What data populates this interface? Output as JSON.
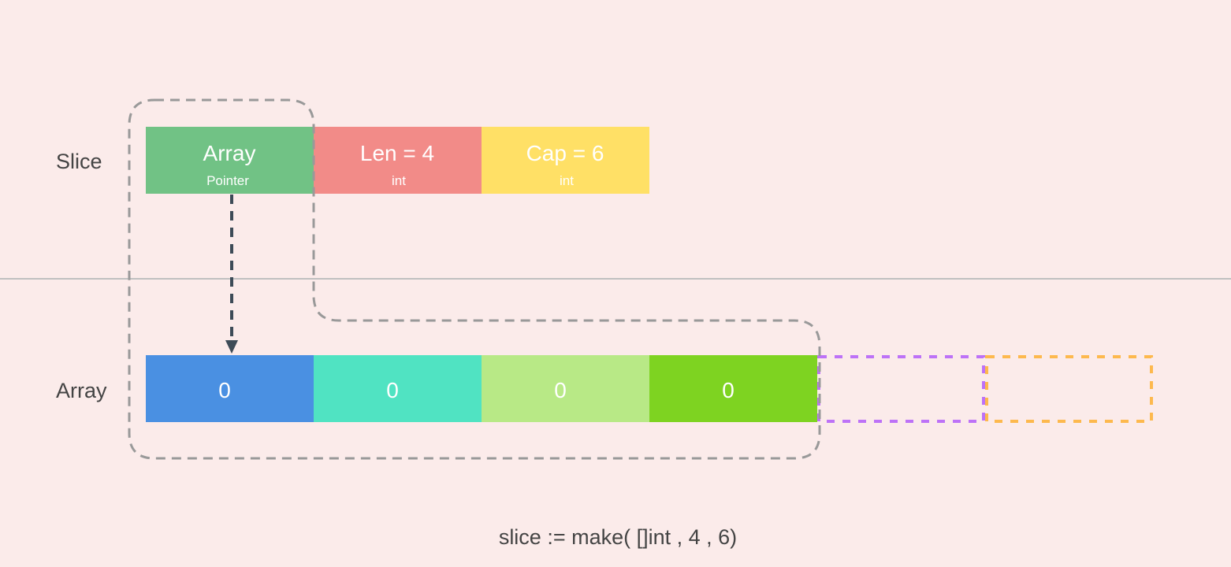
{
  "labels": {
    "slice": "Slice",
    "array": "Array"
  },
  "slice_header": [
    {
      "title": "Array",
      "type": "Pointer",
      "color": "#71c285"
    },
    {
      "title": "Len = 4",
      "type": "int",
      "color": "#f28b88"
    },
    {
      "title": "Cap = 6",
      "type": "int",
      "color": "#ffe066"
    }
  ],
  "array_cells": [
    {
      "value": "0",
      "color": "#4a90e2"
    },
    {
      "value": "0",
      "color": "#50e3c2"
    },
    {
      "value": "0",
      "color": "#b8e986"
    },
    {
      "value": "0",
      "color": "#7ed321"
    }
  ],
  "capacity_slots": [
    {
      "color": "#bd72f7"
    },
    {
      "color": "#fdb94e"
    }
  ],
  "code": "slice := make( []int , 4 , 6)",
  "colors": {
    "background": "#fbebea",
    "outline": "#999999",
    "pointer_arrow": "#3d4b57",
    "divider": "#c0c0c0"
  }
}
